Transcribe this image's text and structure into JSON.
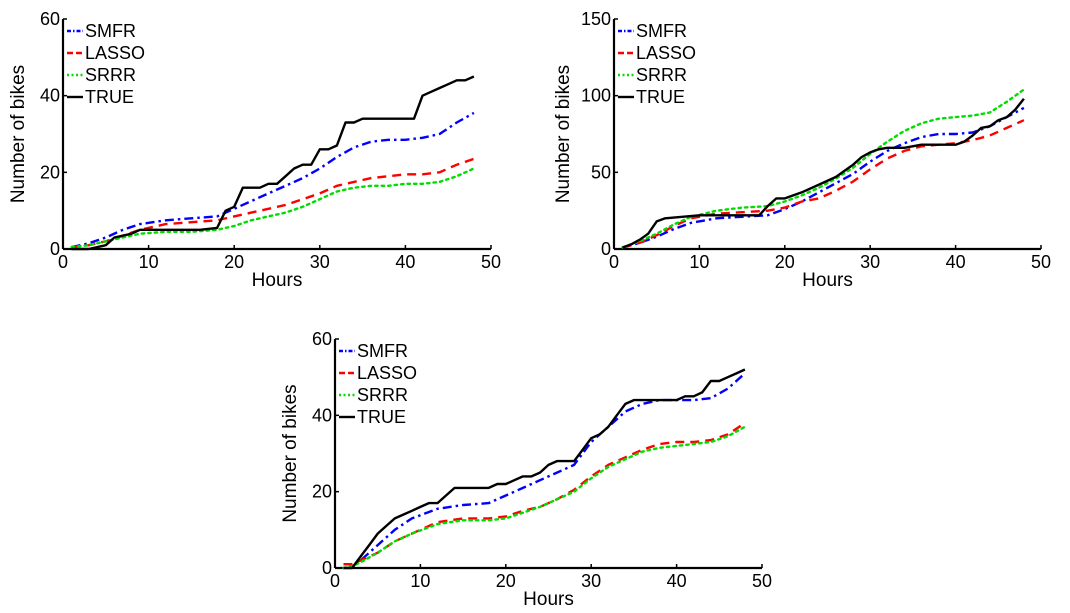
{
  "chart_data": [
    {
      "type": "line",
      "xlabel": "Hours",
      "ylabel": "Number of bikes",
      "xlim": [
        0,
        50
      ],
      "ylim": [
        0,
        60
      ],
      "xticks": [
        0,
        10,
        20,
        30,
        40,
        50
      ],
      "yticks": [
        0,
        20,
        40,
        60
      ],
      "grid": false,
      "legend_position": "top-left",
      "series": [
        {
          "name": "SMFR",
          "color": "#0000ff",
          "dash": "dash-dot",
          "x": [
            1,
            3,
            5,
            7,
            9,
            12,
            15,
            18,
            20,
            22,
            24,
            26,
            28,
            30,
            32,
            34,
            36,
            38,
            40,
            42,
            44,
            46,
            48
          ],
          "y": [
            0.5,
            1.5,
            3,
            5,
            6.5,
            7.5,
            8,
            8.5,
            10.5,
            12.5,
            14.5,
            16.5,
            18.5,
            21,
            24,
            26.5,
            28,
            28.5,
            28.5,
            29,
            30,
            33,
            35.5
          ]
        },
        {
          "name": "LASSO",
          "color": "#ff0000",
          "dash": "dashed",
          "x": [
            1,
            3,
            5,
            7,
            9,
            12,
            15,
            18,
            20,
            22,
            24,
            26,
            28,
            30,
            32,
            34,
            36,
            38,
            40,
            42,
            44,
            46,
            48
          ],
          "y": [
            0.5,
            1,
            2,
            3.5,
            5,
            6.5,
            7,
            7.5,
            8.5,
            9.5,
            10.5,
            11.5,
            13,
            14.5,
            16.5,
            17.5,
            18.5,
            19,
            19.5,
            19.5,
            20,
            22,
            23.5
          ]
        },
        {
          "name": "SRRR",
          "color": "#00dd00",
          "dash": "dotted",
          "x": [
            1,
            3,
            5,
            7,
            9,
            12,
            15,
            18,
            20,
            22,
            24,
            26,
            28,
            30,
            32,
            34,
            36,
            38,
            40,
            42,
            44,
            46,
            48
          ],
          "y": [
            0.5,
            1,
            2,
            3,
            4,
            4.5,
            4.5,
            5,
            6,
            7.5,
            8.5,
            9.5,
            11,
            13,
            15,
            16,
            16.5,
            16.5,
            17,
            17,
            17.5,
            19,
            21
          ]
        },
        {
          "name": "TRUE",
          "color": "#000000",
          "dash": "solid",
          "x": [
            1,
            3,
            5,
            6,
            8,
            9,
            10,
            12,
            14,
            16,
            18,
            19,
            20,
            21,
            22,
            23,
            24,
            25,
            26,
            27,
            28,
            29,
            30,
            31,
            32,
            33,
            34,
            35,
            36,
            37,
            38,
            39,
            40,
            41,
            42,
            43,
            44,
            45,
            46,
            47,
            48
          ],
          "y": [
            0,
            0,
            1,
            3,
            4,
            5,
            5,
            5,
            5,
            5,
            5.5,
            10,
            11,
            16,
            16,
            16,
            17,
            17,
            19,
            21,
            22,
            22,
            26,
            26,
            27,
            33,
            33,
            34,
            34,
            34,
            34,
            34,
            34,
            34,
            40,
            41,
            42,
            43,
            44,
            44,
            45
          ]
        }
      ]
    },
    {
      "type": "line",
      "xlabel": "Hours",
      "ylabel": "Number of bikes",
      "xlim": [
        0,
        50
      ],
      "ylim": [
        0,
        150
      ],
      "xticks": [
        0,
        10,
        20,
        30,
        40,
        50
      ],
      "yticks": [
        0,
        50,
        100,
        150
      ],
      "grid": false,
      "legend_position": "top-left",
      "series": [
        {
          "name": "SMFR",
          "color": "#0000ff",
          "dash": "dash-dot",
          "x": [
            1,
            3,
            5,
            7,
            9,
            12,
            15,
            18,
            20,
            22,
            24,
            26,
            28,
            30,
            32,
            34,
            36,
            38,
            40,
            42,
            44,
            46,
            48
          ],
          "y": [
            1,
            4,
            8,
            13,
            17,
            20,
            21,
            22,
            26,
            31,
            37,
            43,
            49,
            57,
            64,
            69,
            73,
            75,
            75,
            76,
            80,
            86,
            92
          ]
        },
        {
          "name": "LASSO",
          "color": "#ff0000",
          "dash": "dashed",
          "x": [
            1,
            3,
            5,
            7,
            9,
            12,
            15,
            18,
            20,
            22,
            24,
            26,
            28,
            30,
            32,
            34,
            36,
            38,
            40,
            42,
            44,
            46,
            48
          ],
          "y": [
            1,
            4,
            9,
            15,
            20,
            23,
            24,
            25,
            27,
            31,
            33,
            38,
            44,
            52,
            59,
            64,
            67,
            68,
            69,
            71,
            74,
            79,
            84
          ]
        },
        {
          "name": "SRRR",
          "color": "#00dd00",
          "dash": "dotted",
          "x": [
            1,
            3,
            5,
            7,
            9,
            12,
            15,
            18,
            20,
            22,
            24,
            26,
            28,
            30,
            32,
            34,
            36,
            38,
            40,
            42,
            44,
            46,
            48
          ],
          "y": [
            1,
            5,
            10,
            16,
            21,
            25,
            27,
            28,
            31,
            35,
            40,
            46,
            53,
            62,
            70,
            77,
            82,
            85,
            86,
            87,
            89,
            96,
            104
          ]
        },
        {
          "name": "TRUE",
          "color": "#000000",
          "dash": "solid",
          "x": [
            1,
            2,
            3,
            4,
            5,
            6,
            8,
            10,
            12,
            14,
            16,
            17,
            18,
            19,
            20,
            22,
            24,
            26,
            28,
            29,
            30,
            31,
            32,
            34,
            36,
            38,
            40,
            41,
            42,
            43,
            44,
            45,
            46,
            47,
            48
          ],
          "y": [
            1,
            3,
            6,
            10,
            18,
            20,
            21,
            22,
            22,
            22,
            22,
            22,
            28,
            33,
            33,
            37,
            42,
            47,
            55,
            60,
            63,
            65,
            66,
            66,
            68,
            68,
            68,
            70,
            74,
            79,
            80,
            84,
            86,
            91,
            98
          ]
        }
      ]
    },
    {
      "type": "line",
      "xlabel": "Hours",
      "ylabel": "Number of bikes",
      "xlim": [
        0,
        50
      ],
      "ylim": [
        0,
        60
      ],
      "xticks": [
        0,
        10,
        20,
        30,
        40,
        50
      ],
      "yticks": [
        0,
        20,
        40,
        60
      ],
      "grid": false,
      "legend_position": "top-left",
      "series": [
        {
          "name": "SMFR",
          "color": "#0000ff",
          "dash": "dash-dot",
          "x": [
            1,
            2,
            3,
            5,
            7,
            9,
            12,
            15,
            18,
            20,
            22,
            24,
            26,
            28,
            30,
            32,
            34,
            36,
            38,
            40,
            42,
            44,
            46,
            48
          ],
          "y": [
            1,
            1,
            2,
            6,
            10,
            13,
            15.5,
            16.5,
            17,
            19,
            21,
            23,
            25,
            27,
            33,
            37,
            41,
            43,
            44,
            44,
            44,
            44.5,
            47,
            51
          ]
        },
        {
          "name": "LASSO",
          "color": "#ff0000",
          "dash": "dashed",
          "x": [
            1,
            2,
            3,
            5,
            7,
            9,
            12,
            15,
            18,
            20,
            22,
            24,
            26,
            28,
            30,
            32,
            34,
            36,
            38,
            40,
            42,
            44,
            46,
            48
          ],
          "y": [
            1,
            1,
            2,
            4,
            7,
            9,
            12,
            13,
            13,
            13.5,
            15,
            16,
            18,
            20.5,
            24,
            27,
            29,
            31,
            32.5,
            33,
            33,
            33.5,
            35,
            38
          ]
        },
        {
          "name": "SRRR",
          "color": "#00dd00",
          "dash": "dotted",
          "x": [
            1,
            2,
            3,
            5,
            7,
            9,
            12,
            15,
            18,
            20,
            22,
            24,
            26,
            28,
            30,
            32,
            34,
            36,
            38,
            40,
            42,
            44,
            46,
            48
          ],
          "y": [
            0,
            0.5,
            1.5,
            4,
            7,
            9,
            11.5,
            12.5,
            12.5,
            13,
            14.5,
            16,
            18,
            20,
            23.5,
            26.5,
            28.5,
            30.5,
            31.5,
            32,
            32.5,
            33,
            34.5,
            37
          ]
        },
        {
          "name": "TRUE",
          "color": "#000000",
          "dash": "solid",
          "x": [
            1,
            2,
            3,
            4,
            5,
            6,
            7,
            8,
            9,
            10,
            11,
            12,
            13,
            14,
            15,
            16,
            17,
            18,
            19,
            20,
            21,
            22,
            23,
            24,
            25,
            26,
            27,
            28,
            29,
            30,
            31,
            32,
            33,
            34,
            35,
            36,
            37,
            38,
            39,
            40,
            41,
            42,
            43,
            44,
            45,
            46,
            47,
            48
          ],
          "y": [
            0,
            0,
            3,
            6,
            9,
            11,
            13,
            14,
            15,
            16,
            17,
            17,
            19,
            21,
            21,
            21,
            21,
            21,
            22,
            22,
            23,
            24,
            24,
            25,
            27,
            28,
            28,
            28,
            31,
            34,
            35,
            37,
            40,
            43,
            44,
            44,
            44,
            44,
            44,
            44,
            45,
            45,
            46,
            49,
            49,
            50,
            51,
            52
          ]
        }
      ]
    }
  ]
}
